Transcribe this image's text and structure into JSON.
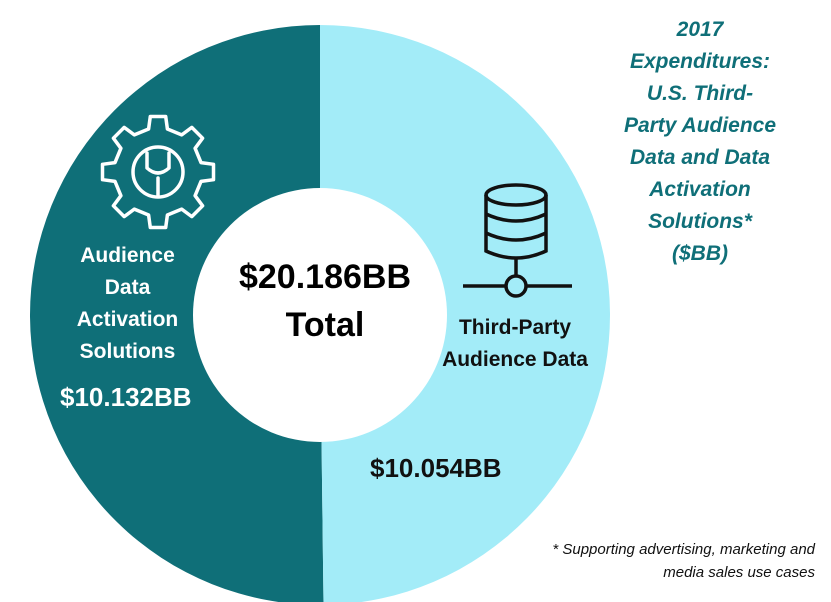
{
  "chart_data": {
    "type": "pie",
    "title_lines": [
      "2017",
      "Expenditures:",
      "U.S. Third-",
      "Party Audience",
      "Data and Data",
      "Activation",
      "Solutions*",
      "($BB)"
    ],
    "total": {
      "value": "$20.186BB",
      "label": "Total"
    },
    "slices": [
      {
        "label": "Audience Data Activation Solutions",
        "value": 10.132,
        "value_label": "$10.132BB",
        "color": "#0f6f78"
      },
      {
        "label": "Third-Party Audience Data",
        "value": 10.054,
        "value_label": "$10.054BB",
        "color": "#a3ecf8"
      }
    ],
    "footnote_lines": [
      "* Supporting advertising, marketing and",
      "media sales use cases"
    ]
  },
  "icons": {
    "left": "gear-wrench-icon",
    "right": "database-network-icon"
  }
}
